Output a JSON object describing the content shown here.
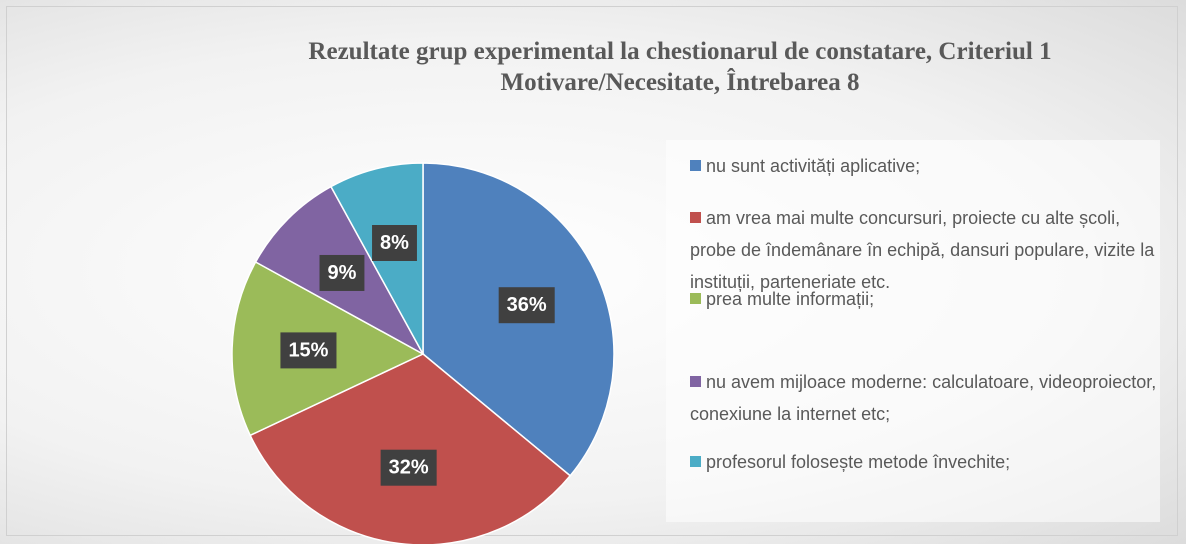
{
  "chart_data": {
    "type": "pie",
    "title": "Rezultate grup experimental la chestionarul de constatare, Criteriul 1 Motivare/Necesitate, Întrebarea 8",
    "categories": [
      "nu sunt activități aplicative;",
      "am vrea mai multe concursuri, proiecte cu alte școli, probe de îndemânare în echipă, dansuri populare, vizite la instituții, parteneriate etc.",
      "prea multe informații;",
      "nu avem mijloace moderne: calculatoare, videoproiector, conexiune la internet etc;",
      "profesorul folosește metode învechite;"
    ],
    "values": [
      36,
      32,
      15,
      9,
      8
    ],
    "value_labels": [
      "36%",
      "32%",
      "15%",
      "9%",
      "8%"
    ],
    "colors": [
      "#4f81bd",
      "#c0504d",
      "#9bbb59",
      "#8064a2",
      "#4bacc6"
    ],
    "legend": "right"
  }
}
